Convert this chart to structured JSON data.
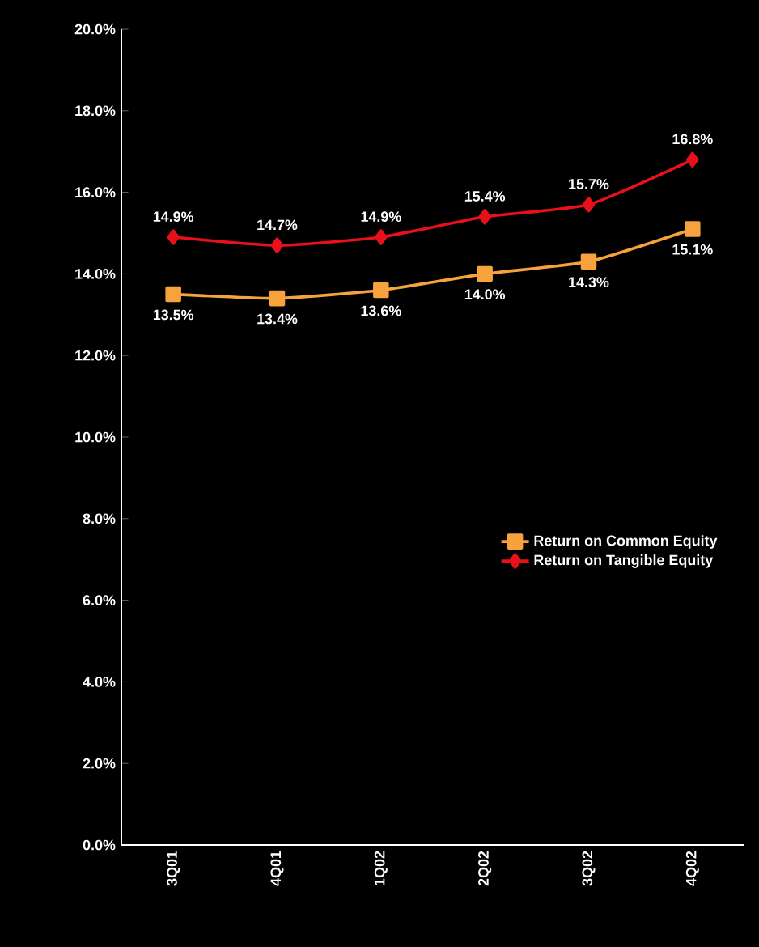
{
  "chart_data": {
    "type": "line",
    "categories": [
      "3Q01",
      "4Q01",
      "1Q02",
      "2Q02",
      "3Q02",
      "4Q02"
    ],
    "series": [
      {
        "name": "Return on Common Equity",
        "color": "#f7a23c",
        "marker": "square",
        "values": [
          13.5,
          13.4,
          13.6,
          14.0,
          14.3,
          15.1
        ],
        "value_labels": [
          "13.5%",
          "13.4%",
          "13.6%",
          "14.0%",
          "14.3%",
          "15.1%"
        ]
      },
      {
        "name": "Return on Tangible Equity",
        "color": "#e8101a",
        "marker": "diamond",
        "values": [
          14.9,
          14.7,
          14.9,
          15.4,
          15.7,
          16.8
        ],
        "value_labels": [
          "14.9%",
          "14.7%",
          "14.9%",
          "15.4%",
          "15.7%",
          "16.8%"
        ]
      }
    ],
    "ylim": [
      0,
      20
    ],
    "yticks": [
      {
        "value": 0,
        "label": "0.0%"
      },
      {
        "value": 2,
        "label": "2.0%"
      },
      {
        "value": 4,
        "label": "4.0%"
      },
      {
        "value": 6,
        "label": "6.0%"
      },
      {
        "value": 8,
        "label": "8.0%"
      },
      {
        "value": 10,
        "label": "10.0%"
      },
      {
        "value": 12,
        "label": "12.0%"
      },
      {
        "value": 14,
        "label": "14.0%"
      },
      {
        "value": 16,
        "label": "16.0%"
      },
      {
        "value": 18,
        "label": "18.0%"
      },
      {
        "value": 20,
        "label": "20.0%"
      }
    ],
    "legend": "right",
    "grid": false
  }
}
